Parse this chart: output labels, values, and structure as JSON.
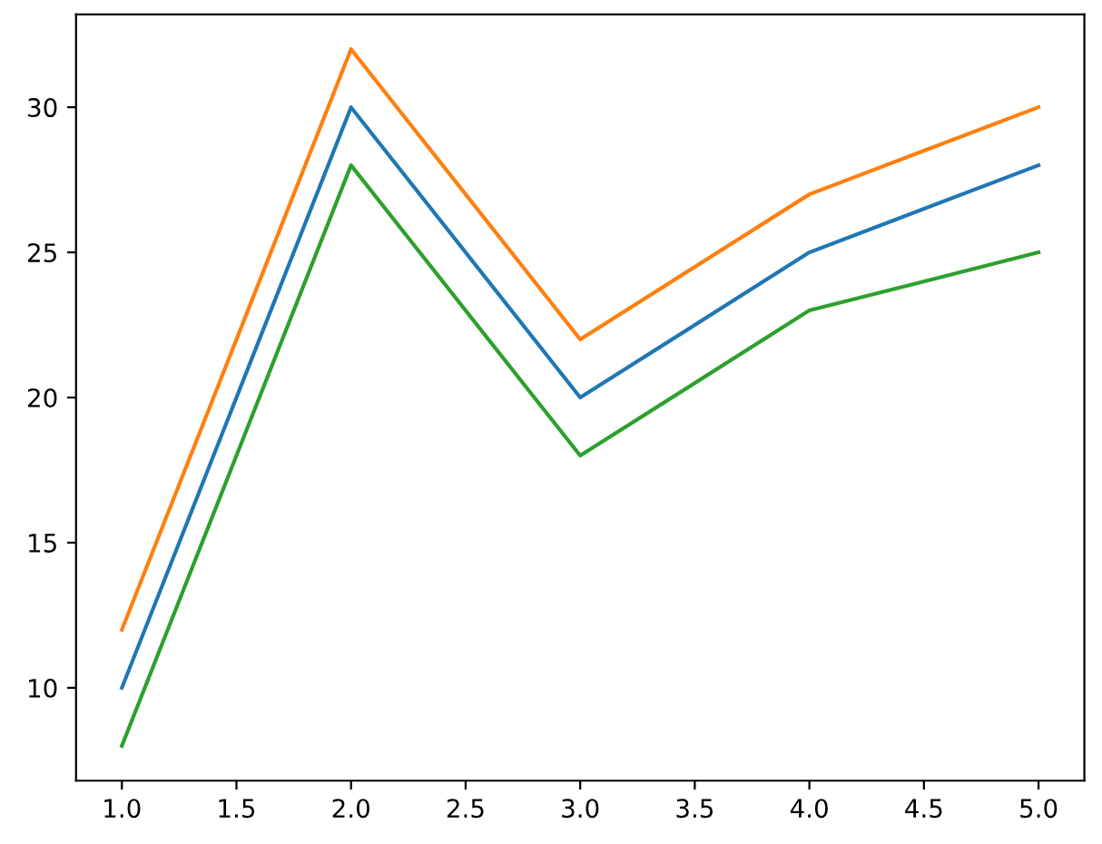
{
  "chart_data": {
    "type": "line",
    "x": [
      1,
      2,
      3,
      4,
      5
    ],
    "series": [
      {
        "color": "#1f77b4",
        "values": [
          10,
          30,
          20,
          25,
          28
        ]
      },
      {
        "color": "#ff7f0e",
        "values": [
          12,
          32,
          22,
          27,
          30
        ]
      },
      {
        "color": "#2ca02c",
        "values": [
          8,
          28,
          18,
          23,
          25
        ]
      }
    ],
    "xlim": [
      0.8,
      5.2
    ],
    "xticks": [
      {
        "value": 1,
        "label": "1.0"
      },
      {
        "value": 1.5,
        "label": "1.5"
      },
      {
        "value": 2,
        "label": "2.0"
      },
      {
        "value": 2.5,
        "label": "2.5"
      },
      {
        "value": 3,
        "label": "3.0"
      },
      {
        "value": 3.5,
        "label": "3.5"
      },
      {
        "value": 4,
        "label": "4.0"
      },
      {
        "value": 4.5,
        "label": "4.5"
      },
      {
        "value": 5,
        "label": "5.0"
      }
    ],
    "ylim": [
      6.8,
      33.2
    ],
    "yticks": [
      10,
      15,
      20,
      25,
      30
    ],
    "grid": false,
    "legend": false,
    "line_style": "solid",
    "marker": "none"
  }
}
